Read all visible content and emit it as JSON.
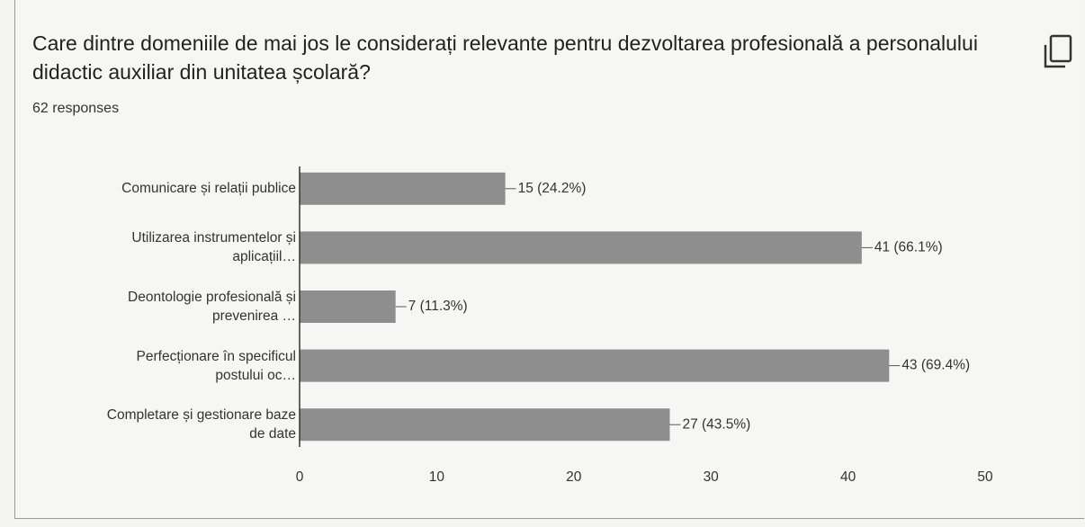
{
  "chart_data": {
    "type": "bar",
    "orientation": "horizontal",
    "title": "Care dintre domeniile de mai jos le considerați relevante pentru dezvoltarea profesională a personalului didactic auxiliar din unitatea școlară?",
    "subtitle": "62 responses",
    "categories": [
      "Comunicare și relații publice",
      "Utilizarea instrumentelor și\naplicațiil…",
      "Deontologie profesională și\nprevenirea …",
      "Perfecționare în specificul\npostului oc…",
      "Completare și gestionare baze\nde date"
    ],
    "values": [
      15,
      41,
      7,
      43,
      27
    ],
    "value_labels": [
      "15 (24.2%)",
      "41 (66.1%)",
      "7 (11.3%)",
      "43 (69.4%)",
      "27 (43.5%)"
    ],
    "color": "#8e8e8e",
    "xlim": [
      0,
      50
    ],
    "xticks": [
      0,
      10,
      20,
      30,
      40,
      50
    ],
    "grid": false
  }
}
